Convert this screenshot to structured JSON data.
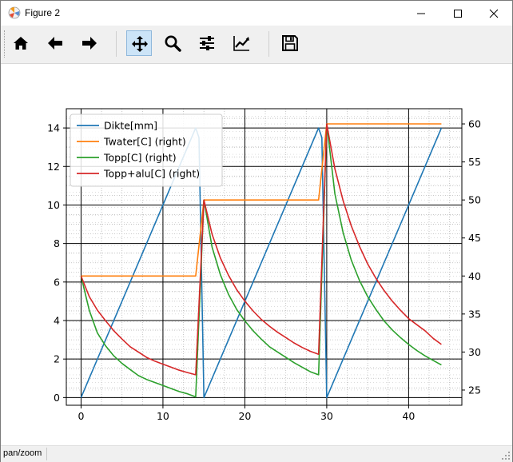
{
  "window": {
    "title": "Figure 2"
  },
  "toolbar": {
    "buttons": [
      {
        "icon": "home-icon"
      },
      {
        "icon": "back-arrow-icon"
      },
      {
        "icon": "forward-arrow-icon"
      },
      {
        "icon": "pan-move-icon",
        "active": true
      },
      {
        "icon": "zoom-magnifier-icon"
      },
      {
        "icon": "configure-subplots-icon"
      },
      {
        "icon": "edit-axis-icon"
      },
      {
        "icon": "save-floppy-icon"
      }
    ]
  },
  "status": {
    "text": "pan/zoom"
  },
  "chart_data": {
    "type": "line",
    "title": "",
    "xlabel": "",
    "ylabel": "",
    "xlim": [
      -1.8,
      46.5
    ],
    "ylim": [
      -0.4,
      15.0
    ],
    "y2lim": [
      23.0,
      62.0
    ],
    "x_ticks": [
      0,
      10,
      20,
      30,
      40
    ],
    "y_ticks": [
      0,
      2,
      4,
      6,
      8,
      10,
      12,
      14
    ],
    "y2_ticks": [
      25,
      30,
      35,
      40,
      45,
      50,
      55,
      60
    ],
    "x_tick_labels": [
      "0",
      "10",
      "20",
      "30",
      "40"
    ],
    "y_tick_labels": [
      "0",
      "2",
      "4",
      "6",
      "8",
      "10",
      "12",
      "14"
    ],
    "y2_tick_labels": [
      "25",
      "30",
      "35",
      "40",
      "45",
      "50",
      "55",
      "60"
    ],
    "grid": true,
    "minor_grid": true,
    "legend_placement": "top-left",
    "series": [
      {
        "name": "Dikte[mm]",
        "axis": "left",
        "color": "#1f77b4",
        "x": [
          0,
          14,
          14.4,
          15,
          29,
          29.4,
          30,
          44
        ],
        "y": [
          0,
          14,
          13.5,
          0,
          14,
          13.5,
          0,
          14
        ]
      },
      {
        "name": "Twater[C] (right)",
        "axis": "right",
        "color": "#ff7f0e",
        "x": [
          0,
          14,
          15,
          29,
          30,
          44
        ],
        "y": [
          40,
          40,
          50,
          50,
          60,
          60
        ]
      },
      {
        "name": "Topp[C] (right)",
        "axis": "right",
        "color": "#2ca02c",
        "x": [
          0,
          1,
          2,
          3,
          4,
          5,
          6,
          7,
          8,
          9,
          10,
          11,
          12,
          13,
          14,
          15,
          16,
          17,
          18,
          19,
          20,
          21,
          22,
          23,
          24,
          25,
          26,
          27,
          28,
          29,
          30,
          31,
          32,
          33,
          34,
          35,
          36,
          37,
          38,
          39,
          40,
          41,
          42,
          43,
          44
        ],
        "y": [
          40,
          35.5,
          32.5,
          30.8,
          29.5,
          28.5,
          27.7,
          26.9,
          26.4,
          26,
          25.6,
          25.2,
          24.8,
          24.5,
          24.1,
          50,
          43.8,
          40.2,
          37.6,
          35.6,
          34.1,
          32.8,
          31.7,
          30.7,
          30,
          29.3,
          28.6,
          28,
          27.4,
          27,
          60,
          50.8,
          45.7,
          42.1,
          39.4,
          37.3,
          35.6,
          34.1,
          32.9,
          31.9,
          31,
          30.2,
          29.5,
          28.9,
          28.3
        ]
      },
      {
        "name": "Topp+alu[C] (right)",
        "axis": "right",
        "color": "#d62728",
        "x": [
          0,
          1,
          2,
          3,
          4,
          5,
          6,
          7,
          8,
          9,
          10,
          11,
          12,
          13,
          14,
          15,
          16,
          17,
          18,
          19,
          20,
          21,
          22,
          23,
          24,
          25,
          26,
          27,
          28,
          29,
          30,
          31,
          32,
          33,
          34,
          35,
          36,
          37,
          38,
          39,
          40,
          41,
          42,
          43,
          44
        ],
        "y": [
          40,
          37.3,
          35.5,
          34.1,
          32.8,
          31.7,
          30.7,
          30,
          29.3,
          28.8,
          28.4,
          28,
          27.6,
          27.3,
          27,
          50,
          45.5,
          42.4,
          40.1,
          38.2,
          36.7,
          35.4,
          34.3,
          33.4,
          32.6,
          31.9,
          31.2,
          30.6,
          30.1,
          29.7,
          60,
          54.1,
          49.9,
          46.6,
          43.9,
          41.6,
          39.7,
          38.1,
          36.7,
          35.5,
          34.4,
          33.6,
          32.8,
          31.8,
          31
        ]
      }
    ]
  }
}
